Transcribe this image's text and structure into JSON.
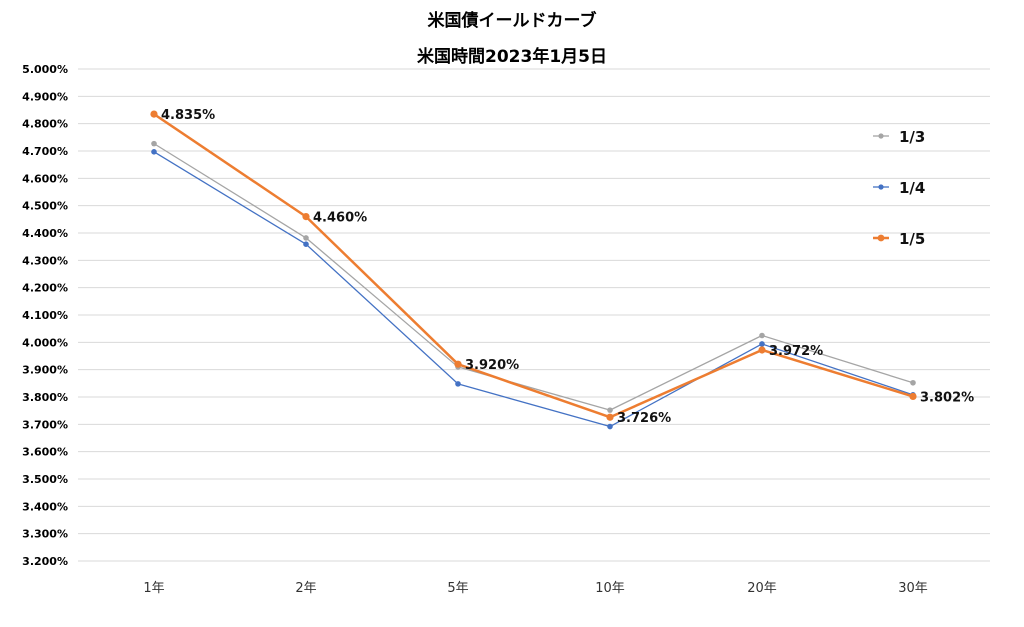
{
  "chart_data": {
    "type": "line",
    "title": "米国債イールドカーブ",
    "subtitle": "米国時間2023年1月5日",
    "categories": [
      "1年",
      "2年",
      "5年",
      "10年",
      "20年",
      "30年"
    ],
    "ylim": [
      3.2,
      5.0
    ],
    "yticks": [
      "3.200%",
      "3.300%",
      "3.400%",
      "3.500%",
      "3.600%",
      "3.700%",
      "3.800%",
      "3.900%",
      "4.000%",
      "4.100%",
      "4.200%",
      "4.300%",
      "4.400%",
      "4.500%",
      "4.600%",
      "4.700%",
      "4.800%",
      "4.900%",
      "5.000%"
    ],
    "grid": true,
    "legend_position": "right",
    "series": [
      {
        "name": "1/3",
        "color": "#a5a5a5",
        "values": [
          4.727,
          4.382,
          3.91,
          3.752,
          4.025,
          3.852
        ]
      },
      {
        "name": "1/4",
        "color": "#4472c4",
        "values": [
          4.697,
          4.359,
          3.848,
          3.692,
          3.994,
          3.808
        ]
      },
      {
        "name": "1/5",
        "color": "#ed7d31",
        "values": [
          4.835,
          4.46,
          3.92,
          3.726,
          3.972,
          3.802
        ]
      }
    ],
    "data_labels": {
      "series": "1/5",
      "labels": [
        "4.835%",
        "4.460%",
        "3.920%",
        "3.726%",
        "3.972%",
        "3.802%"
      ]
    }
  }
}
